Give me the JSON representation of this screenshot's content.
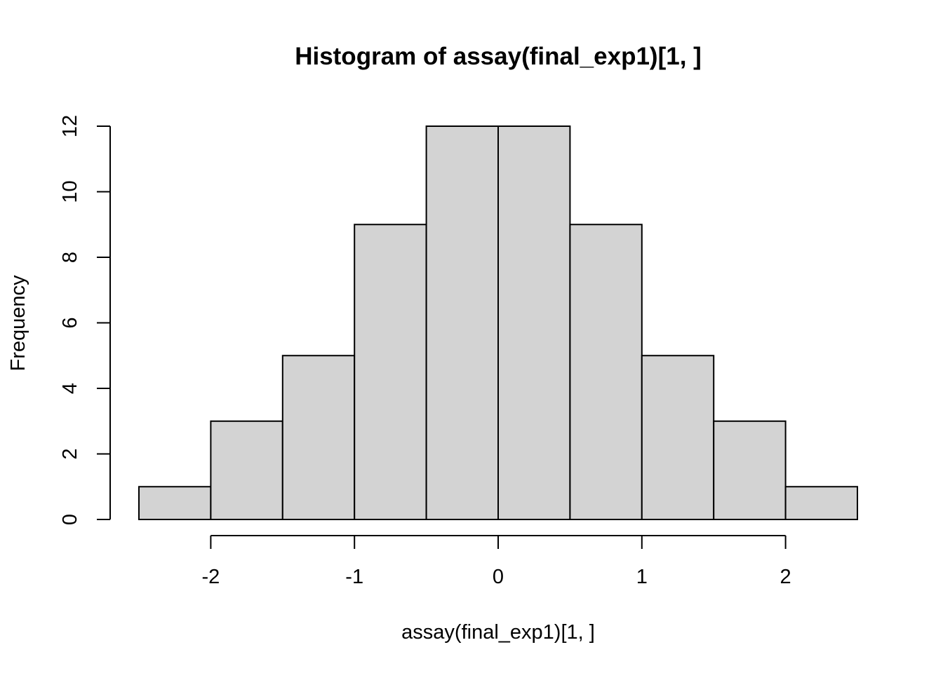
{
  "chart_data": {
    "type": "bar",
    "subtype": "histogram",
    "title": "Histogram of assay(final_exp1)[1, ]",
    "xlabel": "assay(final_exp1)[1, ]",
    "ylabel": "Frequency",
    "bin_width": 0.5,
    "bins": [
      {
        "start": -2.5,
        "end": -2.0,
        "count": 1
      },
      {
        "start": -2.0,
        "end": -1.5,
        "count": 3
      },
      {
        "start": -1.5,
        "end": -1.0,
        "count": 5
      },
      {
        "start": -1.0,
        "end": -0.5,
        "count": 9
      },
      {
        "start": -0.5,
        "end": 0.0,
        "count": 12
      },
      {
        "start": 0.0,
        "end": 0.5,
        "count": 12
      },
      {
        "start": 0.5,
        "end": 1.0,
        "count": 9
      },
      {
        "start": 1.0,
        "end": 1.5,
        "count": 5
      },
      {
        "start": 1.5,
        "end": 2.0,
        "count": 3
      },
      {
        "start": 2.0,
        "end": 2.5,
        "count": 1
      }
    ],
    "x_ticks": [
      -2,
      -1,
      0,
      1,
      2
    ],
    "y_ticks": [
      0,
      2,
      4,
      6,
      8,
      10,
      12
    ],
    "xlim": [
      -2.5,
      2.5
    ],
    "ylim": [
      0,
      12
    ],
    "grid": false,
    "legend": "none",
    "colors": {
      "bar_fill": "#d3d3d3",
      "bar_stroke": "#000000",
      "axis": "#000000",
      "background": "#ffffff"
    }
  }
}
